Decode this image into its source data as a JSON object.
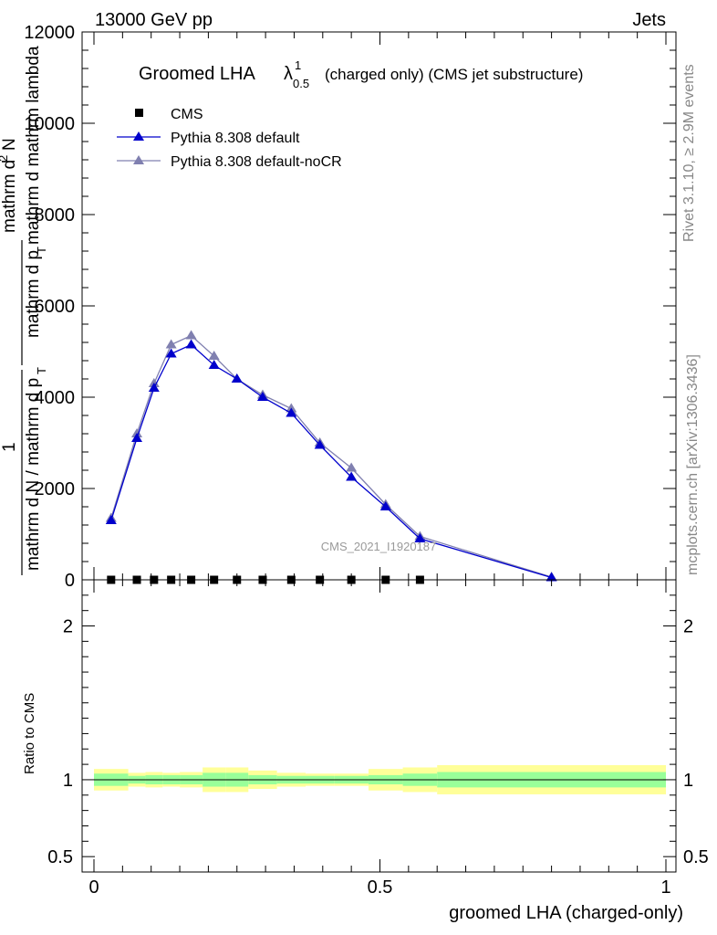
{
  "header": {
    "left": "13000 GeV pp",
    "right": "Jets"
  },
  "side_text": {
    "rivet": "Rivet 3.1.10, ≥ 2.9M events",
    "mcplots": "mcplots.cern.ch [arXiv:1306.3436]"
  },
  "colors": {
    "cms": "#000000",
    "pythia_default": "#0000cc",
    "pythia_nocr": "#8080b0",
    "band_inner": "#99ff99",
    "band_outer": "#ffff99"
  },
  "chart_data": [
    {
      "type": "line",
      "title_main": "Groomed LHA",
      "title_lambda": "λ",
      "title_sup": "1",
      "title_sub": "0.5",
      "title_rest": "(charged only) (CMS jet substructure)",
      "watermark": "CMS_2021_I1920187",
      "ylabel": {
        "num_top": "mathrm d",
        "num_sup": "2",
        "num_bottom": "N",
        "den": "mathrm d p",
        "den_sub": "T",
        "den_rest": " mathrm d mathrm lambda",
        "frac_num": "1",
        "frac_den": "mathrm d N / mathrm d p",
        "frac_den_sub": "T"
      },
      "ylim": [
        0,
        12000
      ],
      "yticks": [
        0,
        2000,
        4000,
        6000,
        8000,
        10000,
        12000
      ],
      "yticks_labels": [
        "0",
        "2000",
        "4000",
        "6000",
        "8000",
        "10000",
        "12000"
      ],
      "xlim": [
        0,
        1
      ],
      "legend": [
        "CMS",
        "Pythia 8.308 default",
        "Pythia 8.308 default-noCR"
      ],
      "series": [
        {
          "name": "CMS",
          "marker": "square",
          "x": [
            0.03,
            0.075,
            0.105,
            0.135,
            0.17,
            0.21,
            0.25,
            0.295,
            0.345,
            0.395,
            0.45,
            0.51,
            0.57
          ],
          "y": [
            0,
            0,
            0,
            0,
            0,
            0,
            0,
            0,
            0,
            0,
            0,
            0,
            0
          ]
        },
        {
          "name": "Pythia 8.308 default",
          "marker": "triangle",
          "x": [
            0.03,
            0.075,
            0.105,
            0.135,
            0.17,
            0.21,
            0.25,
            0.295,
            0.345,
            0.395,
            0.45,
            0.51,
            0.57,
            0.8
          ],
          "y": [
            1300,
            3100,
            4200,
            4950,
            5150,
            4700,
            4400,
            4000,
            3650,
            2950,
            2250,
            1600,
            900,
            50
          ]
        },
        {
          "name": "Pythia 8.308 default-noCR",
          "marker": "triangle",
          "x": [
            0.03,
            0.075,
            0.105,
            0.135,
            0.17,
            0.21,
            0.25,
            0.295,
            0.345,
            0.395,
            0.45,
            0.51,
            0.57,
            0.8
          ],
          "y": [
            1350,
            3200,
            4300,
            5150,
            5350,
            4900,
            4400,
            4050,
            3750,
            3000,
            2450,
            1650,
            950,
            60
          ]
        }
      ]
    },
    {
      "type": "area",
      "ylabel": "Ratio to CMS",
      "xlabel": "groomed LHA (charged-only)",
      "ylim": [
        0.4,
        2.3
      ],
      "yticks_labels": [
        "0.5",
        "1",
        "2"
      ],
      "yticks": [
        0.5,
        1,
        2
      ],
      "xlim": [
        0,
        1
      ],
      "xticks_labels": [
        "0",
        "0.5",
        "1"
      ],
      "xticks": [
        0,
        0.5,
        1
      ],
      "bin_edges": [
        0,
        0.06,
        0.09,
        0.12,
        0.15,
        0.19,
        0.23,
        0.27,
        0.32,
        0.37,
        0.42,
        0.48,
        0.54,
        0.6,
        1.0
      ],
      "band_inner": [
        0.04,
        0.025,
        0.03,
        0.03,
        0.03,
        0.045,
        0.045,
        0.03,
        0.025,
        0.025,
        0.025,
        0.03,
        0.04,
        0.05
      ],
      "band_outer": [
        0.07,
        0.045,
        0.05,
        0.045,
        0.05,
        0.08,
        0.08,
        0.06,
        0.045,
        0.04,
        0.04,
        0.07,
        0.08,
        0.095
      ]
    }
  ]
}
